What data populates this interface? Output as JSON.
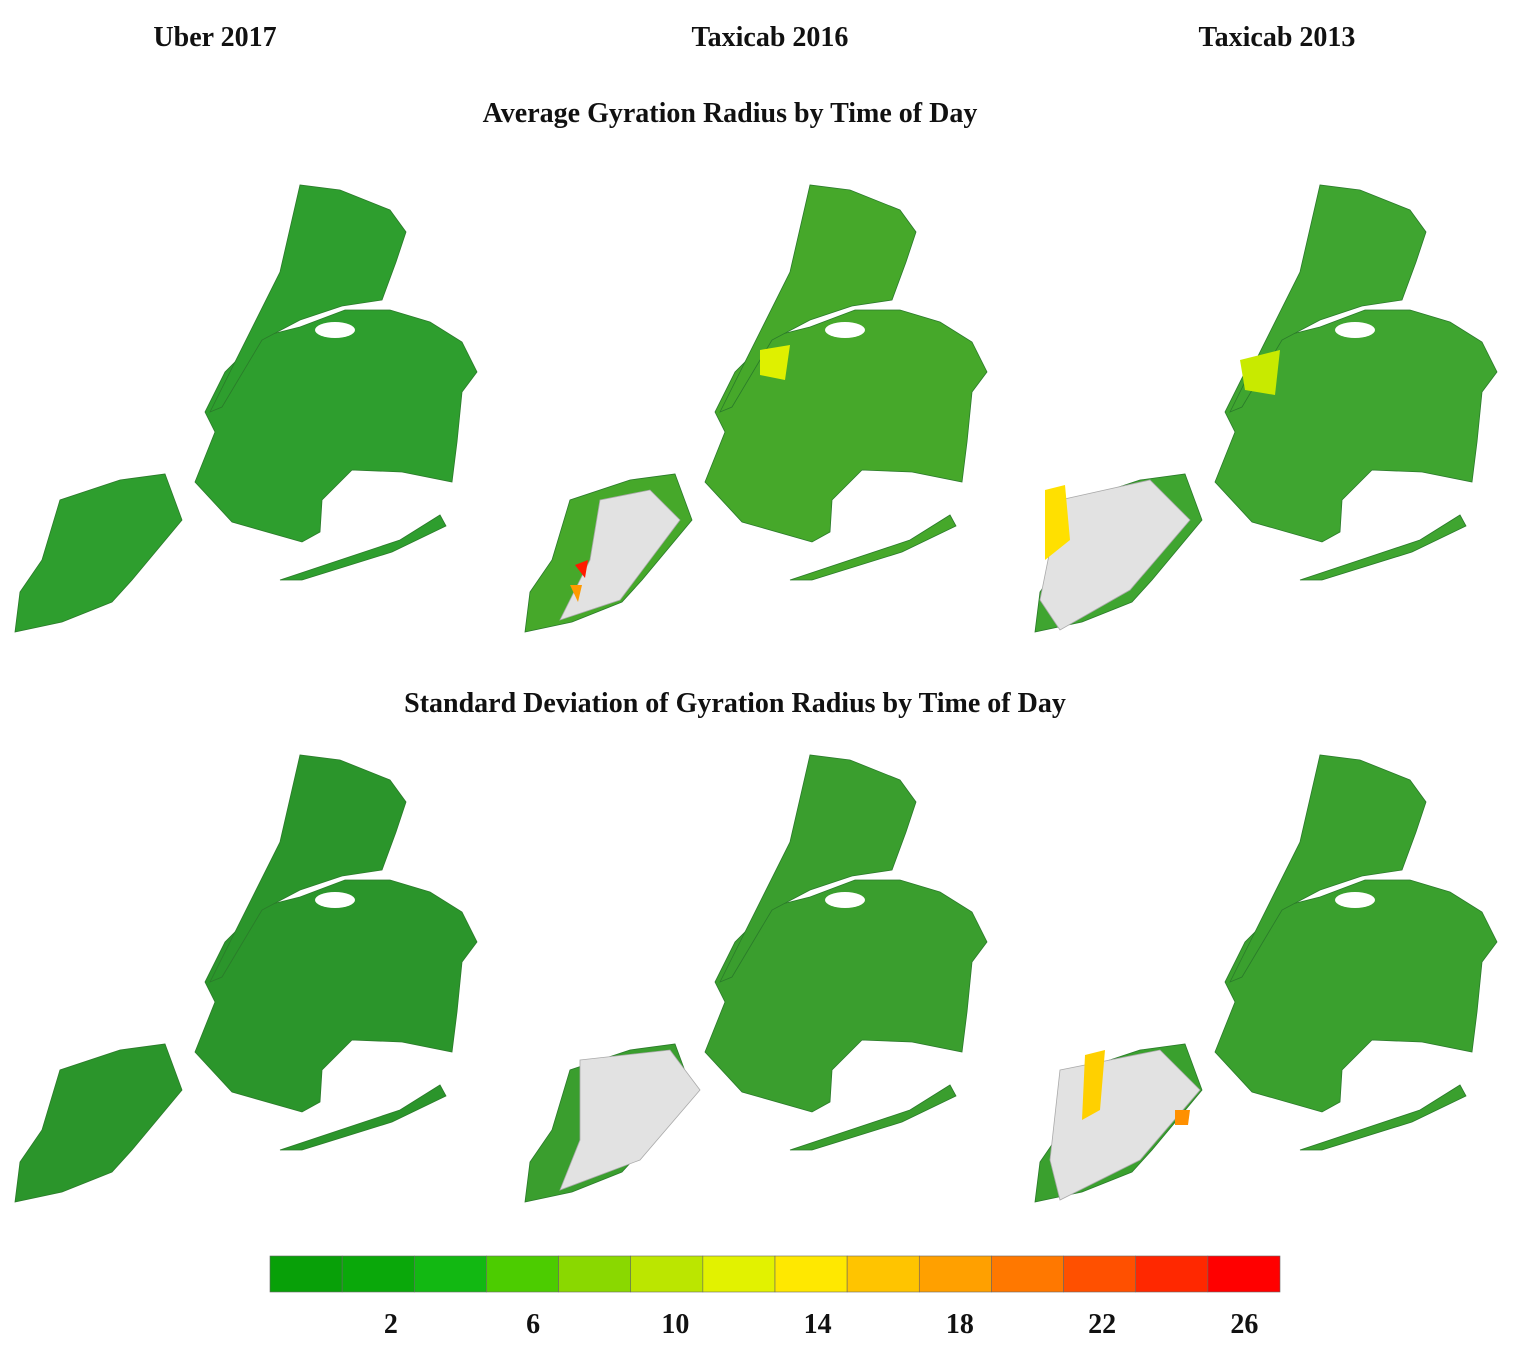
{
  "columns": [
    "Uber 2017",
    "Taxicab 2016",
    "Taxicab 2013"
  ],
  "rows": [
    "Average Gyration Radius by Time of Day",
    "Standard Deviation of Gyration Radius by Time of Day"
  ],
  "legend": {
    "colors": [
      "#08a008",
      "#0aa80a",
      "#12b812",
      "#4ccc00",
      "#8ad800",
      "#bbe600",
      "#e2f200",
      "#ffe800",
      "#ffc400",
      "#ffa000",
      "#ff7800",
      "#ff5000",
      "#ff2800",
      "#ff0000"
    ],
    "range": [
      -1.4,
      27
    ],
    "ticks": [
      2,
      6,
      10,
      14,
      18,
      22,
      26
    ]
  }
}
